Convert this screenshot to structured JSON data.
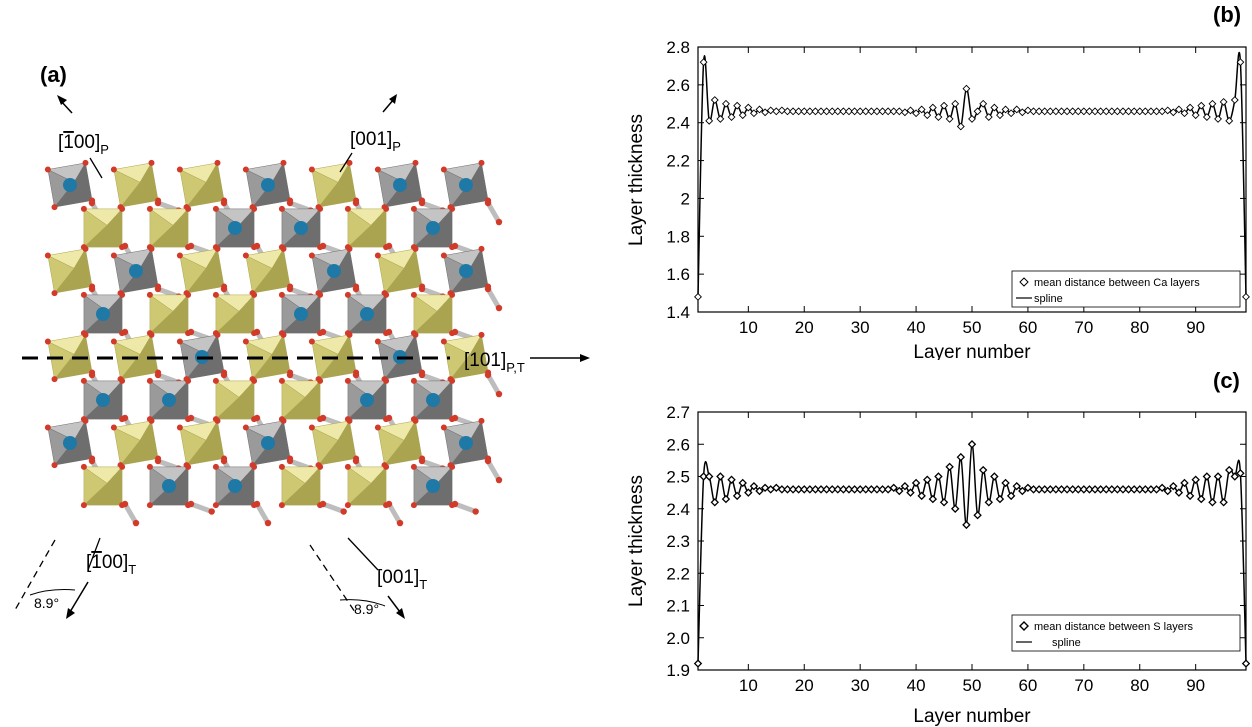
{
  "panels": {
    "a": "(a)",
    "b": "(b)",
    "c": "(c)"
  },
  "structure": {
    "directions": {
      "p100": {
        "main": "[",
        "bar": "1",
        "rest": "00]",
        "sub": "P"
      },
      "p001": {
        "main": "[001]",
        "sub": "P"
      },
      "pt101": {
        "main": "[101]",
        "sub": "P,T"
      },
      "t100": {
        "main": "[",
        "bar": "1",
        "rest": "00]",
        "sub": "T"
      },
      "t001": {
        "main": "[001]",
        "sub": "T"
      }
    },
    "angle_left": "8.9°",
    "angle_right": "8.9°",
    "colors": {
      "octa_gray": "#8a8a8a",
      "octa_yellow": "#d8d27a",
      "ball": "#1f79a6",
      "oxygen": "#d23a2a"
    }
  },
  "chart_data": [
    {
      "type": "line",
      "panel": "(b)",
      "xlabel": "Layer number",
      "ylabel": "Layer thickness",
      "xlim": [
        1,
        99
      ],
      "ylim": [
        1.4,
        2.8
      ],
      "xticks": [
        10,
        20,
        30,
        40,
        50,
        60,
        70,
        80,
        90
      ],
      "yticks": [
        1.4,
        1.6,
        1.8,
        2,
        2.2,
        2.4,
        2.6,
        2.8
      ],
      "ytick_labels": [
        "1.4",
        "1.6",
        "1.8",
        "2",
        "2.2",
        "2.4",
        "2.6",
        "2.8"
      ],
      "legend_position": "bottom-right",
      "series": [
        {
          "name": "mean distance between Ca layers",
          "marker": "diamond"
        },
        {
          "name": "spline",
          "marker": "line"
        }
      ],
      "x": [
        1,
        2,
        3,
        4,
        5,
        6,
        7,
        8,
        9,
        10,
        11,
        12,
        13,
        14,
        15,
        16,
        17,
        18,
        19,
        20,
        21,
        22,
        23,
        24,
        25,
        26,
        27,
        28,
        29,
        30,
        31,
        32,
        33,
        34,
        35,
        36,
        37,
        38,
        39,
        40,
        41,
        42,
        43,
        44,
        45,
        46,
        47,
        48,
        49,
        50,
        51,
        52,
        53,
        54,
        55,
        56,
        57,
        58,
        59,
        60,
        61,
        62,
        63,
        64,
        65,
        66,
        67,
        68,
        69,
        70,
        71,
        72,
        73,
        74,
        75,
        76,
        77,
        78,
        79,
        80,
        81,
        82,
        83,
        84,
        85,
        86,
        87,
        88,
        89,
        90,
        91,
        92,
        93,
        94,
        95,
        96,
        97,
        98,
        99
      ],
      "y": [
        1.48,
        2.72,
        2.41,
        2.52,
        2.42,
        2.5,
        2.43,
        2.49,
        2.44,
        2.48,
        2.45,
        2.47,
        2.455,
        2.465,
        2.46,
        2.465,
        2.46,
        2.46,
        2.46,
        2.46,
        2.46,
        2.46,
        2.46,
        2.46,
        2.46,
        2.46,
        2.46,
        2.46,
        2.46,
        2.46,
        2.46,
        2.46,
        2.46,
        2.46,
        2.46,
        2.46,
        2.46,
        2.455,
        2.465,
        2.45,
        2.47,
        2.44,
        2.48,
        2.43,
        2.49,
        2.42,
        2.5,
        2.38,
        2.58,
        2.42,
        2.46,
        2.5,
        2.43,
        2.48,
        2.44,
        2.47,
        2.45,
        2.47,
        2.455,
        2.465,
        2.46,
        2.46,
        2.46,
        2.46,
        2.46,
        2.46,
        2.46,
        2.46,
        2.46,
        2.46,
        2.46,
        2.46,
        2.46,
        2.46,
        2.46,
        2.46,
        2.46,
        2.46,
        2.46,
        2.46,
        2.46,
        2.46,
        2.46,
        2.46,
        2.465,
        2.455,
        2.47,
        2.45,
        2.48,
        2.44,
        2.49,
        2.43,
        2.5,
        2.42,
        2.51,
        2.41,
        2.52,
        2.72,
        1.48
      ]
    },
    {
      "type": "line",
      "panel": "(c)",
      "xlabel": "Layer number",
      "ylabel": "Layer thickness",
      "xlim": [
        1,
        99
      ],
      "ylim": [
        1.9,
        2.7
      ],
      "xticks": [
        10,
        20,
        30,
        40,
        50,
        60,
        70,
        80,
        90
      ],
      "yticks": [
        1.9,
        2.0,
        2.1,
        2.2,
        2.3,
        2.4,
        2.5,
        2.6,
        2.7
      ],
      "ytick_labels": [
        "1.9",
        "2.0",
        "2.1",
        "2.2",
        "2.3",
        "2.4",
        "2.5",
        "2.6",
        "2.7"
      ],
      "legend_position": "bottom-right",
      "series": [
        {
          "name": "mean distance between S layers",
          "marker": "diamond"
        },
        {
          "name": "spline",
          "marker": "line"
        }
      ],
      "x": [
        1,
        2,
        3,
        4,
        5,
        6,
        7,
        8,
        9,
        10,
        11,
        12,
        13,
        14,
        15,
        16,
        17,
        18,
        19,
        20,
        21,
        22,
        23,
        24,
        25,
        26,
        27,
        28,
        29,
        30,
        31,
        32,
        33,
        34,
        35,
        36,
        37,
        38,
        39,
        40,
        41,
        42,
        43,
        44,
        45,
        46,
        47,
        48,
        49,
        50,
        51,
        52,
        53,
        54,
        55,
        56,
        57,
        58,
        59,
        60,
        61,
        62,
        63,
        64,
        65,
        66,
        67,
        68,
        69,
        70,
        71,
        72,
        73,
        74,
        75,
        76,
        77,
        78,
        79,
        80,
        81,
        82,
        83,
        84,
        85,
        86,
        87,
        88,
        89,
        90,
        91,
        92,
        93,
        94,
        95,
        96,
        97,
        98,
        99
      ],
      "y": [
        1.92,
        2.5,
        2.5,
        2.42,
        2.5,
        2.43,
        2.49,
        2.44,
        2.48,
        2.45,
        2.47,
        2.455,
        2.465,
        2.46,
        2.465,
        2.46,
        2.46,
        2.46,
        2.46,
        2.46,
        2.46,
        2.46,
        2.46,
        2.46,
        2.46,
        2.46,
        2.46,
        2.46,
        2.46,
        2.46,
        2.46,
        2.46,
        2.46,
        2.46,
        2.46,
        2.465,
        2.455,
        2.47,
        2.45,
        2.48,
        2.44,
        2.49,
        2.43,
        2.5,
        2.42,
        2.53,
        2.4,
        2.56,
        2.35,
        2.6,
        2.38,
        2.52,
        2.42,
        2.5,
        2.43,
        2.48,
        2.44,
        2.47,
        2.455,
        2.465,
        2.46,
        2.46,
        2.46,
        2.46,
        2.46,
        2.46,
        2.46,
        2.46,
        2.46,
        2.46,
        2.46,
        2.46,
        2.46,
        2.46,
        2.46,
        2.46,
        2.46,
        2.46,
        2.46,
        2.46,
        2.46,
        2.46,
        2.46,
        2.465,
        2.455,
        2.47,
        2.45,
        2.48,
        2.44,
        2.49,
        2.43,
        2.5,
        2.42,
        2.5,
        2.42,
        2.52,
        2.5,
        2.51,
        1.92
      ]
    }
  ]
}
